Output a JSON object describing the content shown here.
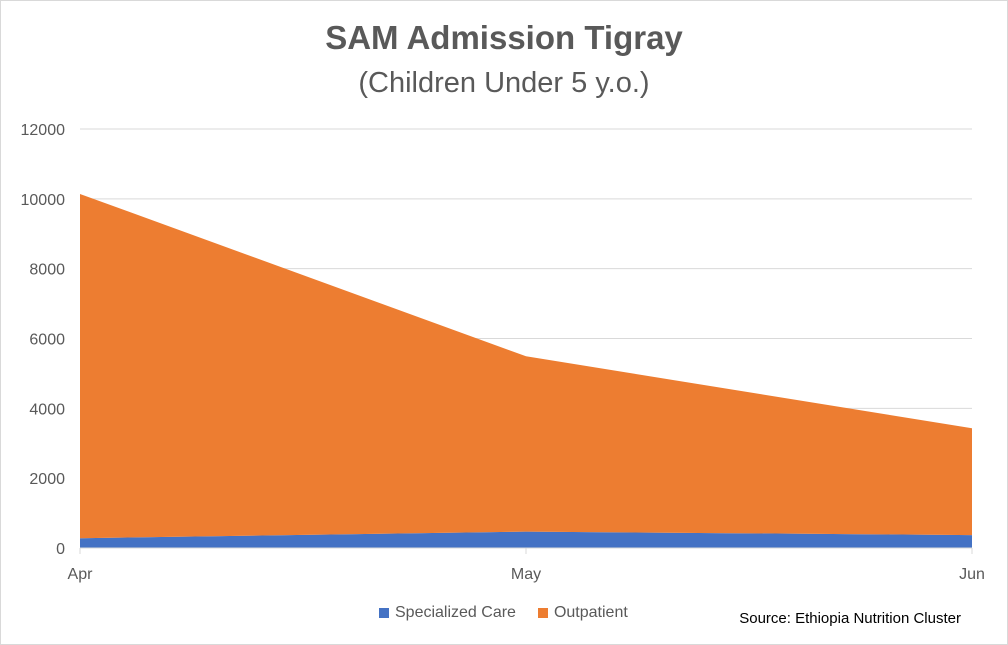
{
  "chart_data": {
    "type": "area",
    "stacked": true,
    "title": "SAM Admission Tigray",
    "subtitle": "(Children Under 5 y.o.)",
    "categories": [
      "Apr",
      "May",
      "Jun"
    ],
    "ylim": [
      0,
      12000
    ],
    "yticks": [
      0,
      2000,
      4000,
      6000,
      8000,
      10000,
      12000
    ],
    "grid": true,
    "legend_position": "bottom",
    "series": [
      {
        "name": "Specialized Care",
        "color": "#4472c4",
        "values": [
          280,
          470,
          370
        ]
      },
      {
        "name": "Outpatient",
        "color": "#ed7d31",
        "values": [
          9860,
          5020,
          3060
        ]
      }
    ],
    "source": "Source: Ethiopia Nutrition Cluster"
  }
}
